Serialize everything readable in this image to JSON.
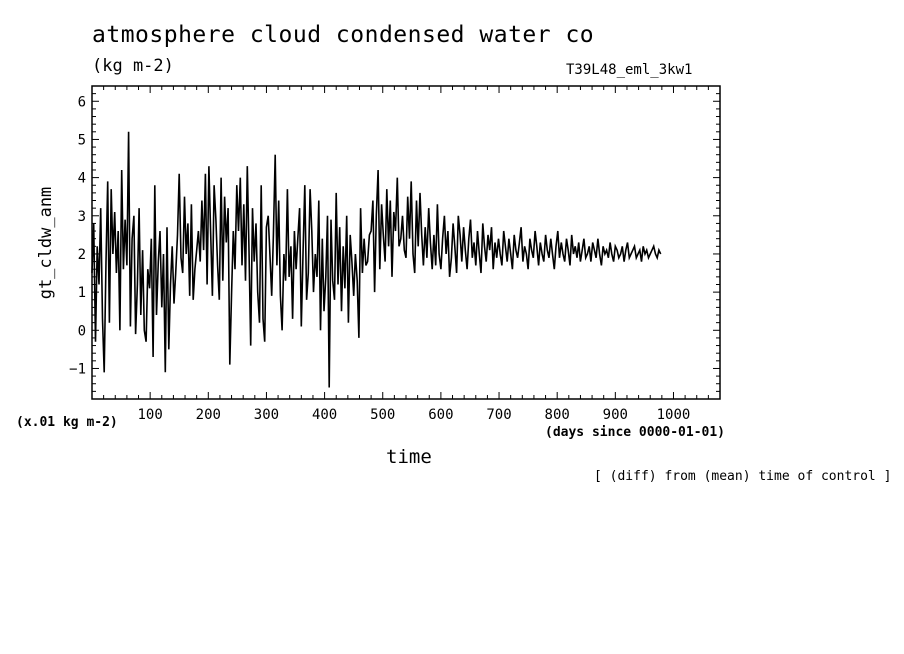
{
  "chart_data": {
    "type": "line",
    "title": "atmosphere cloud condensed water co",
    "units": "(kg m-2)",
    "experiment": "T39L48_eml_3kw1",
    "ylabel": "gt_cldw_anm",
    "xlabel": "time",
    "x_units": "(days since 0000-01-01)",
    "y_scale_note": "(x.01 kg m-2)",
    "annotation": "[ (diff) from (mean) time of control ]",
    "xlim": [
      0,
      1080
    ],
    "ylim": [
      -1.8,
      6.4
    ],
    "x_ticks": [
      100,
      200,
      300,
      400,
      500,
      600,
      700,
      800,
      900,
      1000
    ],
    "y_ticks": [
      -1,
      0,
      1,
      2,
      3,
      4,
      5,
      6
    ],
    "series": [
      {
        "x_start": 0,
        "x_step": 3,
        "values": [
          1.5,
          2.8,
          -0.3,
          2.2,
          1.2,
          3.2,
          0.3,
          -1.1,
          1.8,
          3.9,
          0.2,
          3.7,
          2.0,
          3.1,
          1.5,
          2.6,
          0.0,
          4.2,
          1.6,
          2.9,
          1.7,
          5.2,
          0.1,
          2.4,
          3.0,
          -0.1,
          1.2,
          3.2,
          0.4,
          2.1,
          0.0,
          -0.3,
          1.6,
          1.1,
          2.4,
          -0.7,
          3.8,
          0.4,
          1.8,
          2.6,
          0.6,
          2.0,
          -1.1,
          2.7,
          -0.5,
          1.2,
          2.2,
          0.7,
          1.5,
          2.5,
          4.1,
          1.9,
          1.5,
          3.5,
          2.0,
          2.8,
          0.9,
          3.3,
          0.8,
          1.6,
          2.1,
          2.6,
          1.8,
          3.4,
          2.1,
          4.1,
          1.2,
          4.3,
          2.6,
          0.9,
          3.8,
          2.9,
          1.7,
          0.8,
          4.0,
          1.3,
          3.5,
          2.3,
          3.2,
          -0.9,
          1.0,
          2.6,
          1.6,
          3.8,
          2.6,
          4.0,
          1.7,
          3.3,
          1.3,
          4.3,
          2.1,
          -0.4,
          3.2,
          1.8,
          2.8,
          1.0,
          0.2,
          3.8,
          0.3,
          -0.3,
          2.7,
          3.0,
          2.0,
          0.9,
          2.5,
          4.6,
          1.7,
          3.4,
          0.9,
          0.0,
          2.0,
          1.3,
          3.7,
          1.4,
          2.2,
          0.3,
          2.6,
          1.6,
          2.4,
          3.2,
          0.1,
          2.1,
          3.8,
          0.8,
          1.5,
          3.7,
          2.6,
          1.0,
          2.0,
          1.4,
          3.4,
          0.0,
          2.4,
          0.5,
          1.4,
          3.0,
          -1.5,
          2.9,
          1.3,
          0.8,
          3.6,
          1.2,
          2.7,
          0.5,
          2.2,
          1.1,
          3.0,
          0.2,
          2.5,
          1.8,
          0.9,
          2.0,
          1.3,
          -0.2,
          3.2,
          1.5,
          2.4,
          1.7,
          1.8,
          2.5,
          2.6,
          3.4,
          1.0,
          3.0,
          4.2,
          1.6,
          3.3,
          2.5,
          1.8,
          3.7,
          2.2,
          3.4,
          1.4,
          3.1,
          2.6,
          4.0,
          2.2,
          2.4,
          3.0,
          2.1,
          1.9,
          3.5,
          2.4,
          3.9,
          2.0,
          1.5,
          3.4,
          2.2,
          3.6,
          2.5,
          1.7,
          2.7,
          1.9,
          3.2,
          2.3,
          1.6,
          2.5,
          1.7,
          3.3,
          2.0,
          1.6,
          2.4,
          3.0,
          2.0,
          2.6,
          1.4,
          1.9,
          2.8,
          2.2,
          1.5,
          3.0,
          2.5,
          1.8,
          2.7,
          2.1,
          1.6,
          2.4,
          2.9,
          1.9,
          2.3,
          1.7,
          2.6,
          2.0,
          1.5,
          2.8,
          2.2,
          1.8,
          2.5,
          2.1,
          2.7,
          1.6,
          2.3,
          1.9,
          2.4,
          2.0,
          1.7,
          2.6,
          2.2,
          1.8,
          2.4,
          2.0,
          1.6,
          2.5,
          2.1,
          1.9,
          2.3,
          2.7,
          1.8,
          2.2,
          2.0,
          1.6,
          2.4,
          2.1,
          1.9,
          2.6,
          2.2,
          1.7,
          2.3,
          2.0,
          1.8,
          2.5,
          2.1,
          1.9,
          2.4,
          2.0,
          1.6,
          2.2,
          2.6,
          1.9,
          2.3,
          2.0,
          1.8,
          2.4,
          2.1,
          1.7,
          2.5,
          2.0,
          2.2,
          1.9,
          2.3,
          1.8,
          2.1,
          2.4,
          1.9,
          2.0,
          2.2,
          1.8,
          2.3,
          2.1,
          1.9,
          2.4,
          2.0,
          1.7,
          2.2,
          2.0,
          2.1,
          1.9,
          2.3,
          2.0,
          1.8,
          2.2,
          2.1,
          1.9,
          2.0,
          2.2,
          1.8,
          2.1,
          2.3,
          1.9,
          2.0,
          2.1,
          2.2,
          1.9,
          2.0,
          2.1,
          1.8,
          2.2,
          2.0,
          2.1,
          1.9,
          2.0,
          2.1,
          2.2,
          2.0,
          1.9,
          2.1,
          2.0
        ]
      }
    ]
  }
}
